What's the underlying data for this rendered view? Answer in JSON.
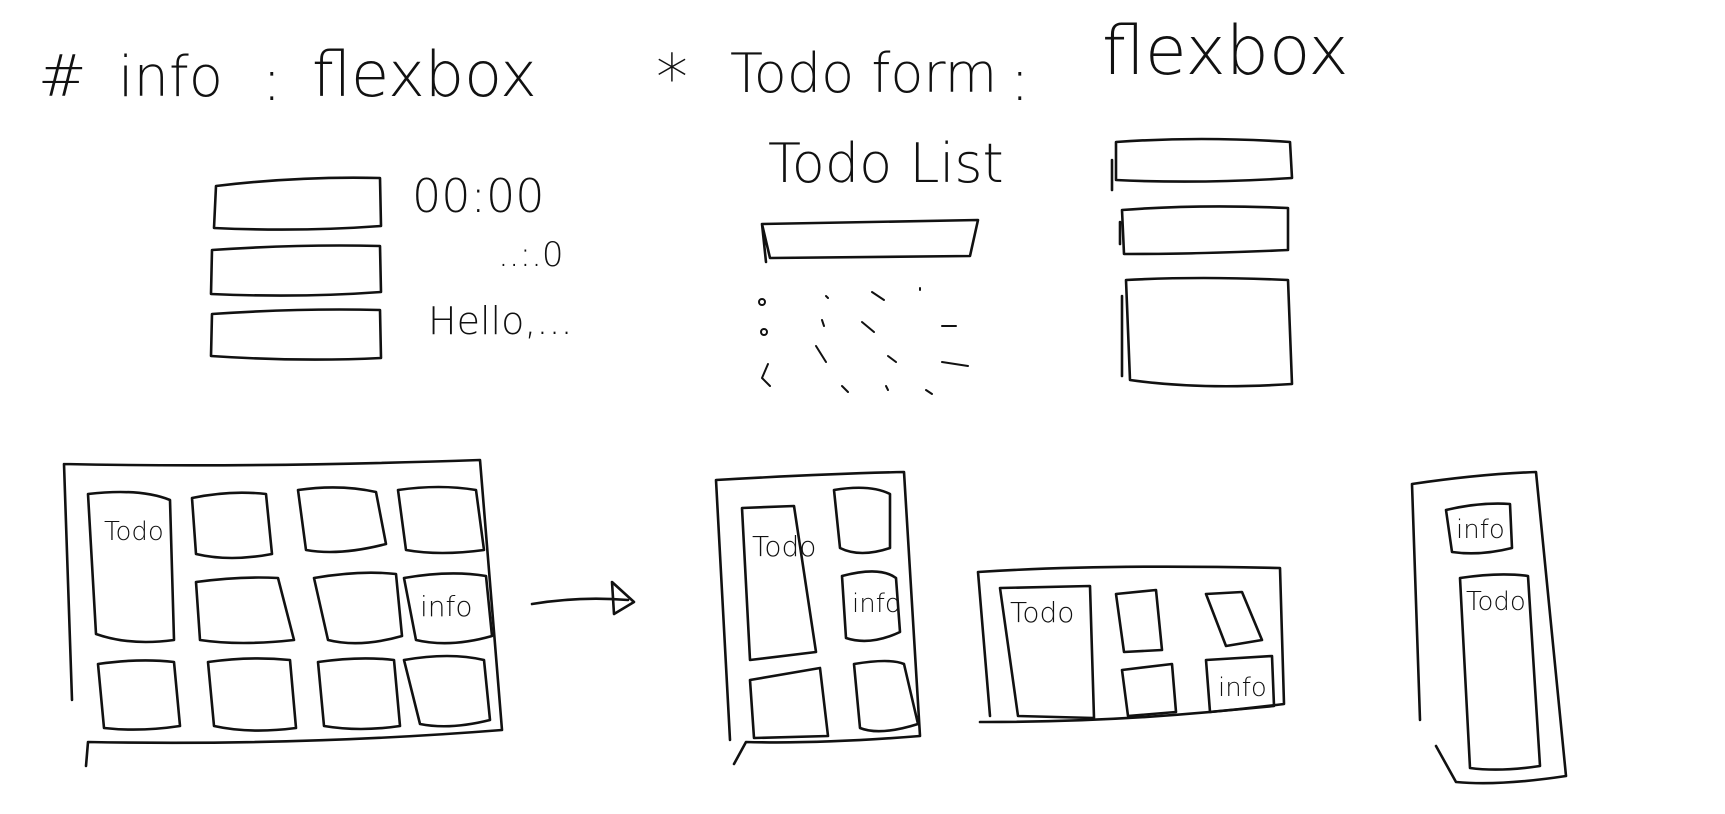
{
  "headings": {
    "info_hash": "#",
    "info_word": "info",
    "info_sep": ":",
    "info_value": "flexbox",
    "todo_mark": "*",
    "todo_word": "Todo form",
    "todo_sep": ":",
    "todo_value": "flexbox"
  },
  "info_sketch": {
    "clock": "00:00",
    "date": "..:.0",
    "greeting": "Hello,..."
  },
  "todo_sketch": {
    "title": "Todo List"
  },
  "grid_sketch": {
    "todo_label": "Todo",
    "info_label": "info"
  },
  "layout_tall": {
    "todo_label": "Todo",
    "info_label": "info"
  },
  "layout_wide": {
    "todo_label": "Todo",
    "info_label": "info"
  },
  "layout_narrow": {
    "info_label": "info",
    "todo_label": "Todo"
  }
}
